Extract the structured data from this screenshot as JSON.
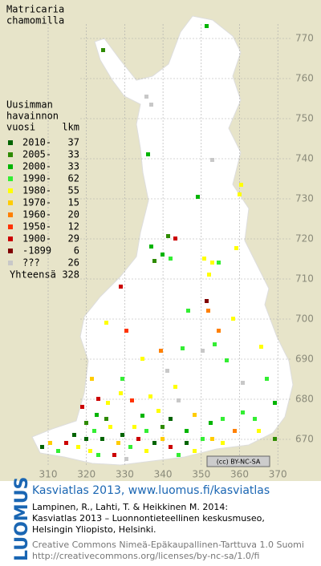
{
  "map": {
    "title": [
      "Matricaria",
      "chamomilla"
    ],
    "legend": {
      "heading": [
        "Uusimman",
        "havainnon",
        "vuosi"
      ],
      "count_heading": "lkm",
      "items": [
        {
          "label": "2010-",
          "count": 37,
          "color": "#006400"
        },
        {
          "label": "2005-",
          "count": 33,
          "color": "#2e8b00"
        },
        {
          "label": "2000-",
          "count": 33,
          "color": "#00b400"
        },
        {
          "label": "1990-",
          "count": 62,
          "color": "#33ee33"
        },
        {
          "label": "1980-",
          "count": 55,
          "color": "#ffff00"
        },
        {
          "label": "1970-",
          "count": 15,
          "color": "#ffcc00"
        },
        {
          "label": "1960-",
          "count": 20,
          "color": "#ff8000"
        },
        {
          "label": "1950-",
          "count": 12,
          "color": "#ff3300"
        },
        {
          "label": "1900-",
          "count": 29,
          "color": "#cc0000"
        },
        {
          "label": "-1899",
          "count": 6,
          "color": "#800000"
        },
        {
          "label": "???",
          "count": 26,
          "color": "#c8c8c8"
        }
      ],
      "total_label": "Yhteensä",
      "total": 328
    },
    "grid": {
      "y_labels": [
        770,
        760,
        750,
        740,
        730,
        720,
        710,
        700,
        690,
        680,
        670
      ],
      "x_labels": [
        310,
        320,
        330,
        340,
        350,
        360,
        370
      ]
    },
    "license_badge": "(cc) BY-NC-SA"
  },
  "footer": {
    "logo": "LUOMUS",
    "link": "Kasviatlas 2013, www.luomus.fi/kasviatlas",
    "citation": [
      "Lampinen, R., Lahti, T. & Heikkinen M. 2014:",
      "Kasviatlas 2013 – Luonnontieteellinen keskusmuseo,",
      "Helsingin Yliopisto, Helsinki."
    ],
    "license": [
      "Creative Commons Nimeä-Epäkaupallinen-Tarttuva 1.0 Suomi",
      "http://creativecommons.org/licenses/by-nc-sa/1.0/fi"
    ]
  }
}
